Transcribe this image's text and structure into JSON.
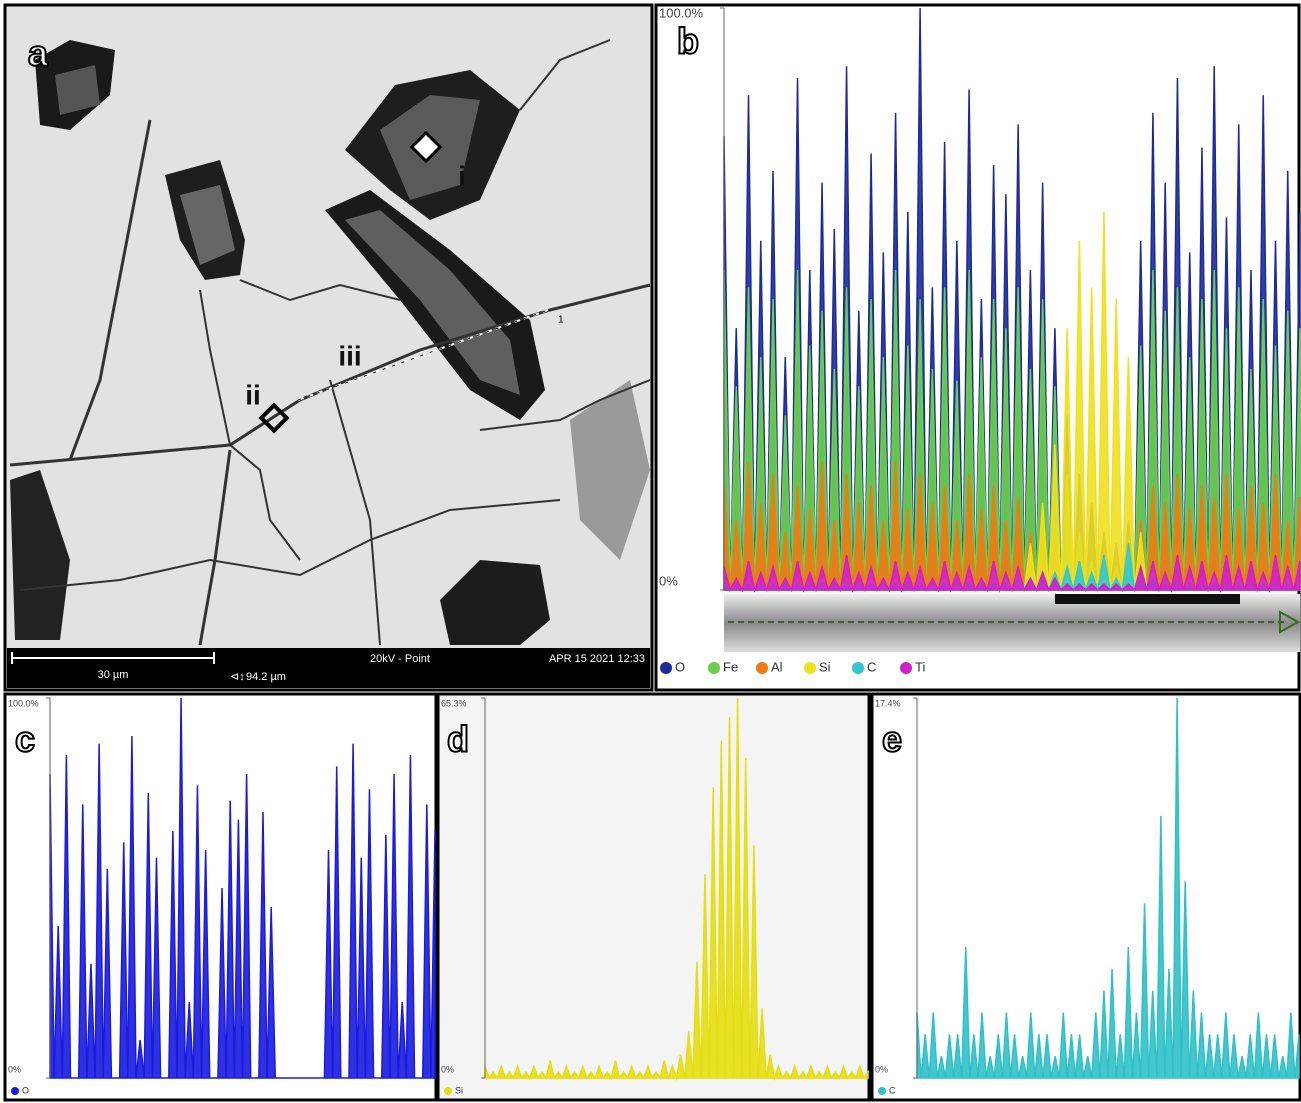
{
  "image_panel": {
    "label": "a",
    "annotations": [
      "i",
      "ii",
      "iii",
      "1"
    ],
    "scale_bar": "30 µm",
    "field_width": "94.2 µm",
    "mode": "20kV - Point",
    "timestamp": "APR 15 2021 12:33"
  },
  "chart_data": [
    {
      "type": "area",
      "panel_label": "b",
      "ylim": [
        0,
        100
      ],
      "yticks": [
        {
          "value": 0,
          "label": "0%"
        },
        {
          "value": 100,
          "label": "100.0%"
        }
      ],
      "series": [
        {
          "name": "O",
          "color": "#1c2a9c",
          "values": [
            78,
            45,
            85,
            60,
            72,
            40,
            88,
            55,
            70,
            62,
            90,
            48,
            75,
            58,
            82,
            65,
            100,
            52,
            77,
            60,
            86,
            50,
            73,
            68,
            80,
            55,
            70,
            45,
            30,
            20,
            15,
            10,
            8,
            12,
            60,
            82,
            70,
            88,
            58,
            76,
            90,
            64,
            80,
            55,
            85,
            60,
            72,
            65
          ]
        },
        {
          "name": "Fe",
          "color": "#6ad04a",
          "values": [
            55,
            35,
            52,
            40,
            50,
            30,
            55,
            42,
            48,
            38,
            52,
            35,
            50,
            40,
            55,
            42,
            50,
            38,
            52,
            36,
            55,
            40,
            50,
            45,
            52,
            38,
            50,
            35,
            20,
            10,
            5,
            5,
            4,
            6,
            42,
            55,
            48,
            52,
            40,
            50,
            55,
            45,
            52,
            38,
            50,
            42,
            48,
            45
          ]
        },
        {
          "name": "Al",
          "color": "#f07a14",
          "values": [
            18,
            12,
            22,
            15,
            20,
            10,
            18,
            14,
            22,
            12,
            20,
            15,
            18,
            12,
            22,
            14,
            20,
            15,
            18,
            12,
            20,
            14,
            18,
            12,
            16,
            10,
            14,
            8,
            4,
            2,
            2,
            2,
            2,
            2,
            12,
            18,
            15,
            20,
            14,
            18,
            16,
            20,
            14,
            18,
            15,
            20,
            12,
            16
          ]
        },
        {
          "name": "Si",
          "color": "#f0e020",
          "values": [
            2,
            1,
            2,
            1,
            2,
            1,
            2,
            1,
            2,
            1,
            2,
            1,
            2,
            1,
            2,
            1,
            2,
            1,
            2,
            1,
            2,
            1,
            3,
            2,
            4,
            8,
            15,
            25,
            45,
            60,
            52,
            65,
            50,
            40,
            10,
            3,
            2,
            1,
            2,
            1,
            2,
            1,
            2,
            1,
            2,
            1,
            2,
            1
          ]
        },
        {
          "name": "C",
          "color": "#30c8d0",
          "values": [
            1,
            1,
            1,
            1,
            1,
            1,
            1,
            1,
            1,
            1,
            1,
            1,
            1,
            1,
            1,
            1,
            1,
            1,
            1,
            1,
            1,
            1,
            1,
            1,
            2,
            2,
            3,
            3,
            4,
            5,
            3,
            6,
            2,
            8,
            3,
            2,
            1,
            1,
            1,
            1,
            1,
            1,
            1,
            1,
            1,
            1,
            1,
            1
          ]
        },
        {
          "name": "Ti",
          "color": "#d020c8",
          "values": [
            4,
            2,
            5,
            3,
            4,
            2,
            5,
            3,
            4,
            2,
            6,
            3,
            4,
            2,
            5,
            3,
            4,
            2,
            5,
            3,
            4,
            2,
            5,
            3,
            4,
            2,
            3,
            2,
            1,
            1,
            1,
            1,
            1,
            1,
            4,
            5,
            3,
            6,
            4,
            5,
            3,
            6,
            4,
            5,
            3,
            6,
            4,
            5
          ]
        }
      ]
    },
    {
      "type": "area",
      "panel_label": "c",
      "ylim": [
        0,
        100
      ],
      "yticks": [
        {
          "value": 0,
          "label": "0%"
        },
        {
          "value": 100,
          "label": "100.0%"
        }
      ],
      "series": [
        {
          "name": "O",
          "color": "#1a1ae0",
          "values": [
            80,
            40,
            85,
            0,
            72,
            30,
            88,
            55,
            0,
            62,
            90,
            10,
            75,
            58,
            0,
            65,
            100,
            20,
            77,
            60,
            0,
            50,
            73,
            68,
            80,
            0,
            70,
            45,
            0,
            0,
            0,
            0,
            0,
            0,
            60,
            82,
            0,
            88,
            58,
            76,
            0,
            64,
            80,
            20,
            85,
            0,
            72,
            65
          ]
        }
      ]
    },
    {
      "type": "area",
      "panel_label": "d",
      "ylim": [
        0,
        65.3
      ],
      "yticks": [
        {
          "value": 0,
          "label": "0%"
        },
        {
          "value": 65.3,
          "label": "65.3%"
        }
      ],
      "series": [
        {
          "name": "Si",
          "color": "#e6de10",
          "values": [
            2,
            1,
            2,
            1,
            2,
            1,
            2,
            1,
            3,
            1,
            2,
            1,
            2,
            1,
            2,
            1,
            3,
            1,
            2,
            1,
            2,
            1,
            3,
            2,
            4,
            8,
            20,
            35,
            50,
            58,
            62,
            65.3,
            55,
            40,
            12,
            4,
            2,
            1,
            2,
            1,
            2,
            1,
            2,
            1,
            2,
            1,
            2,
            1
          ]
        }
      ]
    },
    {
      "type": "area",
      "panel_label": "e",
      "ylim": [
        0,
        17.4
      ],
      "yticks": [
        {
          "value": 0,
          "label": "0%"
        },
        {
          "value": 17.4,
          "label": "17.4%"
        }
      ],
      "series": [
        {
          "name": "C",
          "color": "#30c0c8",
          "values": [
            3,
            2,
            3,
            1,
            2,
            2,
            6,
            2,
            3,
            1,
            2,
            3,
            2,
            1,
            3,
            2,
            2,
            1,
            3,
            2,
            2,
            1,
            3,
            4,
            5,
            2,
            6,
            3,
            8,
            4,
            12,
            5,
            17.4,
            9,
            4,
            3,
            2,
            2,
            3,
            2,
            1,
            2,
            3,
            2,
            2,
            1,
            3,
            2
          ]
        }
      ]
    }
  ]
}
